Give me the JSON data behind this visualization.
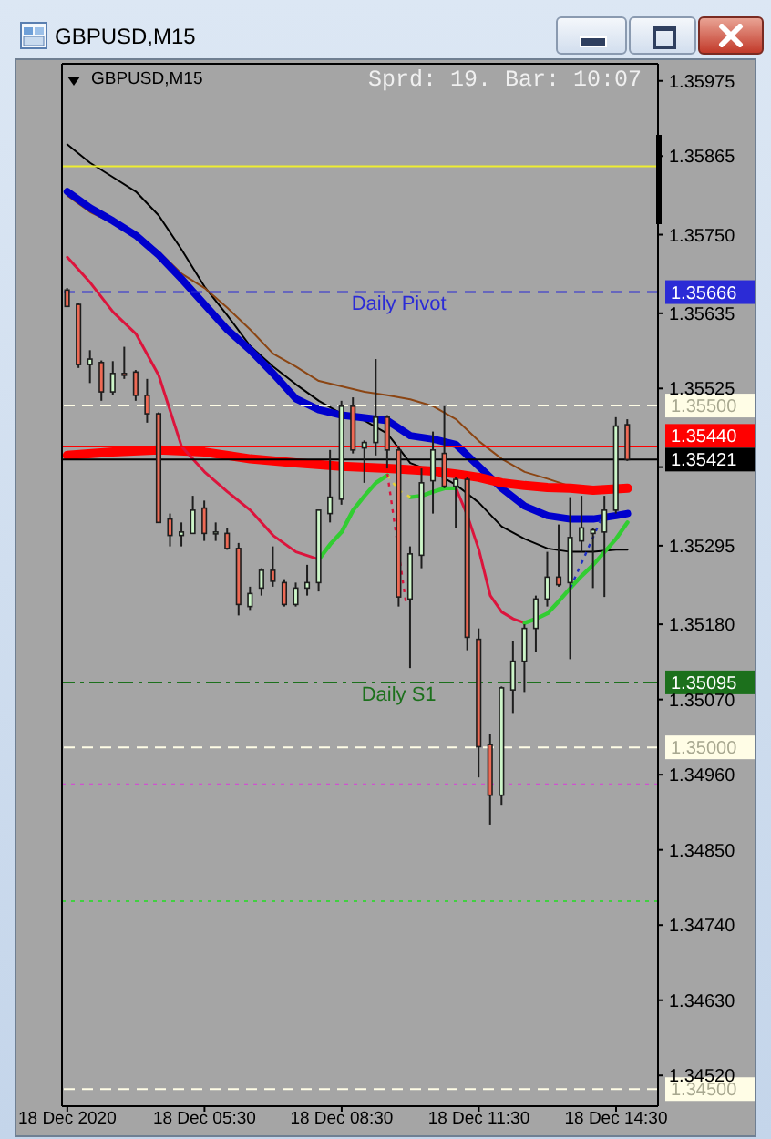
{
  "chart_data": {
    "type": "candlestick",
    "title": "GBPUSD,M15",
    "subtitle": "GBPUSD,M15",
    "annotations": [
      "Sprd: 19. Bar: 10:07",
      {
        "text": "Daily Pivot",
        "x": "2020-12-18T09:45",
        "y": 1.35666
      },
      {
        "text": "Daily S1",
        "x": "2020-12-18T09:45",
        "y": 1.35095
      }
    ],
    "x": [
      "2020-12-18T02:30",
      "2020-12-18T02:45",
      "2020-12-18T03:00",
      "2020-12-18T03:15",
      "2020-12-18T03:30",
      "2020-12-18T03:45",
      "2020-12-18T04:00",
      "2020-12-18T04:15",
      "2020-12-18T04:30",
      "2020-12-18T04:45",
      "2020-12-18T05:00",
      "2020-12-18T05:15",
      "2020-12-18T05:30",
      "2020-12-18T05:45",
      "2020-12-18T06:00",
      "2020-12-18T06:15",
      "2020-12-18T06:30",
      "2020-12-18T06:45",
      "2020-12-18T07:00",
      "2020-12-18T07:15",
      "2020-12-18T07:30",
      "2020-12-18T07:45",
      "2020-12-18T08:00",
      "2020-12-18T08:15",
      "2020-12-18T08:30",
      "2020-12-18T08:45",
      "2020-12-18T09:00",
      "2020-12-18T09:15",
      "2020-12-18T09:30",
      "2020-12-18T09:45",
      "2020-12-18T10:00",
      "2020-12-18T10:15",
      "2020-12-18T10:30",
      "2020-12-18T10:45",
      "2020-12-18T11:00",
      "2020-12-18T11:15",
      "2020-12-18T11:30",
      "2020-12-18T11:45",
      "2020-12-18T12:00",
      "2020-12-18T12:15",
      "2020-12-18T12:30",
      "2020-12-18T12:45",
      "2020-12-18T13:00",
      "2020-12-18T13:15",
      "2020-12-18T13:30",
      "2020-12-18T13:45",
      "2020-12-18T14:00",
      "2020-12-18T14:15",
      "2020-12-18T14:30",
      "2020-12-18T14:45"
    ],
    "ohlc": [
      [
        1.35669,
        1.35672,
        1.35645,
        1.35645
      ],
      [
        1.35648,
        1.3565,
        1.35555,
        1.3556
      ],
      [
        1.3556,
        1.35581,
        1.35533,
        1.35568
      ],
      [
        1.35563,
        1.35566,
        1.35507,
        1.3552
      ],
      [
        1.3552,
        1.35565,
        1.35515,
        1.35547
      ],
      [
        1.35547,
        1.35586,
        1.35539,
        1.35545
      ],
      [
        1.35549,
        1.35552,
        1.35507,
        1.35515
      ],
      [
        1.35515,
        1.35539,
        1.35475,
        1.35488
      ],
      [
        1.35488,
        1.3549,
        1.35329,
        1.35329
      ],
      [
        1.35334,
        1.35342,
        1.35294,
        1.3531
      ],
      [
        1.3531,
        1.35329,
        1.35294,
        1.35315
      ],
      [
        1.35313,
        1.35368,
        1.35313,
        1.35347
      ],
      [
        1.3535,
        1.35361,
        1.35302,
        1.35313
      ],
      [
        1.35313,
        1.35329,
        1.35302,
        1.35315
      ],
      [
        1.35313,
        1.35321,
        1.35289,
        1.35291
      ],
      [
        1.35291,
        1.35299,
        1.35193,
        1.35209
      ],
      [
        1.35206,
        1.35235,
        1.35201,
        1.35225
      ],
      [
        1.35233,
        1.35262,
        1.35222,
        1.35259
      ],
      [
        1.35259,
        1.35294,
        1.35235,
        1.35243
      ],
      [
        1.35241,
        1.35246,
        1.35206,
        1.35209
      ],
      [
        1.35209,
        1.35241,
        1.35206,
        1.35233
      ],
      [
        1.35233,
        1.35267,
        1.35222,
        1.35241
      ],
      [
        1.35241,
        1.35347,
        1.35228,
        1.35347
      ],
      [
        1.35342,
        1.35435,
        1.35329,
        1.35366
      ],
      [
        1.35363,
        1.35507,
        1.35355,
        1.35499
      ],
      [
        1.35499,
        1.35512,
        1.3543,
        1.35435
      ],
      [
        1.35438,
        1.35449,
        1.35387,
        1.35446
      ],
      [
        1.35446,
        1.35568,
        1.35427,
        1.35483
      ],
      [
        1.35483,
        1.35486,
        1.35408,
        1.35435
      ],
      [
        1.35435,
        1.3544,
        1.35206,
        1.3522
      ],
      [
        1.35217,
        1.35294,
        1.35116,
        1.35283
      ],
      [
        1.35281,
        1.35408,
        1.35262,
        1.35387
      ],
      [
        1.3539,
        1.35462,
        1.35342,
        1.35435
      ],
      [
        1.3543,
        1.35499,
        1.35379,
        1.35382
      ],
      [
        1.35382,
        1.35395,
        1.35321,
        1.35392
      ],
      [
        1.35392,
        1.35395,
        1.35142,
        1.35161
      ],
      [
        1.35158,
        1.35174,
        1.34956,
        1.35001
      ],
      [
        1.35004,
        1.3502,
        1.34887,
        1.3493
      ],
      [
        1.3493,
        1.35089,
        1.34916,
        1.35087
      ],
      [
        1.35084,
        1.35156,
        1.35049,
        1.35126
      ],
      [
        1.35126,
        1.3518,
        1.35081,
        1.35174
      ],
      [
        1.35174,
        1.35222,
        1.3514,
        1.35217
      ],
      [
        1.35217,
        1.35286,
        1.35206,
        1.35249
      ],
      [
        1.35249,
        1.35326,
        1.35235,
        1.35238
      ],
      [
        1.35241,
        1.35366,
        1.35129,
        1.35307
      ],
      [
        1.35302,
        1.35368,
        1.35286,
        1.35321
      ],
      [
        1.35313,
        1.35321,
        1.35233,
        1.35318
      ],
      [
        1.35315,
        1.35368,
        1.3522,
        1.35347
      ],
      [
        1.35347,
        1.35483,
        1.35342,
        1.3547
      ],
      [
        1.35472,
        1.3548,
        1.35419,
        1.35421
      ]
    ],
    "colors": [
      "#ee6a55",
      "#ee6a55",
      "#ccf5c8",
      "#ee6a55",
      "#ccf5c8",
      "#ee6a55",
      "#ee6a55",
      "#ee6a55",
      "#ee6a55",
      "#ee6a55",
      "#ccf5c8",
      "#ccf5c8",
      "#ee6a55",
      "#ccf5c8",
      "#ee6a55",
      "#ee6a55",
      "#ccf5c8",
      "#ccf5c8",
      "#ee6a55",
      "#ee6a55",
      "#ccf5c8",
      "#ccf5c8",
      "#ccf5c8",
      "#ccf5c8",
      "#ccf5c8",
      "#ee6a55",
      "#ccf5c8",
      "#ccf5c8",
      "#ee6a55",
      "#ee6a55",
      "#ccf5c8",
      "#ccf5c8",
      "#ccf5c8",
      "#ee6a55",
      "#ccf5c8",
      "#ee6a55",
      "#ee6a55",
      "#ee6a55",
      "#ccf5c8",
      "#ccf5c8",
      "#ccf5c8",
      "#ccf5c8",
      "#ccf5c8",
      "#ee6a55",
      "#ccf5c8",
      "#ccf5c8",
      "#ccf5c8",
      "#ccf5c8",
      "#ccf5c8",
      "#ee6a55"
    ],
    "series": [
      {
        "type": "line",
        "color": "#000000",
        "x": [
          "2020-12-18T02:30",
          "2020-12-18T03:00",
          "2020-12-18T03:30",
          "2020-12-18T04:00",
          "2020-12-18T04:30",
          "2020-12-18T05:00",
          "2020-12-18T05:30",
          "2020-12-18T06:00",
          "2020-12-18T06:30",
          "2020-12-18T07:00",
          "2020-12-18T07:30",
          "2020-12-18T08:00",
          "2020-12-18T08:30",
          "2020-12-18T09:00",
          "2020-12-18T09:30",
          "2020-12-18T10:00",
          "2020-12-18T10:30",
          "2020-12-18T11:00",
          "2020-12-18T11:30",
          "2020-12-18T12:00",
          "2020-12-18T12:30",
          "2020-12-18T13:00",
          "2020-12-18T13:30",
          "2020-12-18T14:00",
          "2020-12-18T14:30",
          "2020-12-18T14:45"
        ],
        "values": [
          1.35882,
          1.35855,
          1.35834,
          1.35813,
          1.35778,
          1.35728,
          1.35674,
          1.35632,
          1.35587,
          1.35557,
          1.35531,
          1.35507,
          1.35488,
          1.35478,
          1.35459,
          1.35416,
          1.35403,
          1.35384,
          1.35358,
          1.35323,
          1.35305,
          1.35291,
          1.35286,
          1.35286,
          1.35289,
          1.35289
        ]
      },
      {
        "type": "line",
        "color": "#8b4513",
        "x": [
          "2020-12-18T02:30",
          "2020-12-18T03:00",
          "2020-12-18T03:30",
          "2020-12-18T04:00",
          "2020-12-18T04:30",
          "2020-12-18T05:00",
          "2020-12-18T05:30",
          "2020-12-18T06:00",
          "2020-12-18T06:30",
          "2020-12-18T07:00",
          "2020-12-18T07:30",
          "2020-12-18T08:00",
          "2020-12-18T08:30",
          "2020-12-18T09:00",
          "2020-12-18T09:30",
          "2020-12-18T10:00",
          "2020-12-18T10:30",
          "2020-12-18T11:00",
          "2020-12-18T11:30",
          "2020-12-18T12:00",
          "2020-12-18T12:30",
          "2020-12-18T13:00",
          "2020-12-18T13:30",
          "2020-12-18T14:00",
          "2020-12-18T14:30",
          "2020-12-18T14:45"
        ],
        "values": [
          1.35807,
          1.35783,
          1.35767,
          1.35751,
          1.35725,
          1.35693,
          1.35672,
          1.35643,
          1.35611,
          1.35576,
          1.35557,
          1.35536,
          1.35528,
          1.3552,
          1.35515,
          1.35509,
          1.35499,
          1.3548,
          1.35448,
          1.35422,
          1.35403,
          1.35393,
          1.35382,
          1.35379,
          1.35379,
          1.35379
        ]
      },
      {
        "type": "line",
        "color": "#0000cd",
        "x": [
          "2020-12-18T02:30",
          "2020-12-18T03:00",
          "2020-12-18T03:30",
          "2020-12-18T04:00",
          "2020-12-18T04:30",
          "2020-12-18T05:00",
          "2020-12-18T05:30",
          "2020-12-18T06:00",
          "2020-12-18T06:30",
          "2020-12-18T07:00",
          "2020-12-18T07:30",
          "2020-12-18T08:00",
          "2020-12-18T08:30",
          "2020-12-18T09:00",
          "2020-12-18T09:30",
          "2020-12-18T10:00",
          "2020-12-18T10:30",
          "2020-12-18T11:00",
          "2020-12-18T11:30",
          "2020-12-18T12:00",
          "2020-12-18T12:30",
          "2020-12-18T13:00",
          "2020-12-18T13:30",
          "2020-12-18T14:00",
          "2020-12-18T14:30",
          "2020-12-18T14:45"
        ],
        "values": [
          1.35813,
          1.35789,
          1.3577,
          1.35749,
          1.3572,
          1.35685,
          1.35648,
          1.35611,
          1.35581,
          1.35547,
          1.3551,
          1.35494,
          1.35486,
          1.35482,
          1.35478,
          1.35456,
          1.35451,
          1.35443,
          1.35411,
          1.35379,
          1.35353,
          1.35339,
          1.35334,
          1.35334,
          1.35339,
          1.35342
        ]
      },
      {
        "type": "line",
        "color": "#ff0000",
        "x": [
          "2020-12-18T02:30",
          "2020-12-18T03:30",
          "2020-12-18T04:30",
          "2020-12-18T05:30",
          "2020-12-18T06:30",
          "2020-12-18T07:30",
          "2020-12-18T08:30",
          "2020-12-18T09:30",
          "2020-12-18T10:30",
          "2020-12-18T11:00",
          "2020-12-18T11:30",
          "2020-12-18T12:00",
          "2020-12-18T12:30",
          "2020-12-18T13:00",
          "2020-12-18T13:30",
          "2020-12-18T14:00",
          "2020-12-18T14:45"
        ],
        "values": [
          1.35427,
          1.35432,
          1.35435,
          1.35432,
          1.35422,
          1.35416,
          1.35411,
          1.35408,
          1.35404,
          1.354,
          1.35395,
          1.35387,
          1.35383,
          1.3538,
          1.35379,
          1.35376,
          1.35379
        ]
      },
      {
        "type": "line",
        "color": "#dc143c",
        "x": [
          "2020-12-18T02:30",
          "2020-12-18T03:00",
          "2020-12-18T03:30",
          "2020-12-18T04:00",
          "2020-12-18T04:30",
          "2020-12-18T05:00",
          "2020-12-18T05:30",
          "2020-12-18T06:00",
          "2020-12-18T06:30",
          "2020-12-18T07:00",
          "2020-12-18T07:30",
          "2020-12-18T08:00",
          "2020-12-18T08:30",
          "2020-12-18T11:00",
          "2020-12-18T11:15",
          "2020-12-18T11:30",
          "2020-12-18T11:45",
          "2020-12-18T12:00",
          "2020-12-18T12:15",
          "2020-12-18T12:30"
        ],
        "values": [
          1.35717,
          1.3568,
          1.35637,
          1.35605,
          1.35544,
          1.3544,
          1.35403,
          1.35374,
          1.35347,
          1.3531,
          1.35286,
          1.35275,
          null,
          1.35379,
          1.35339,
          1.35289,
          1.35222,
          1.35198,
          1.35188,
          1.35182
        ]
      },
      {
        "type": "line",
        "color": "#32cd32",
        "x": [
          "2020-12-18T08:00",
          "2020-12-18T08:15",
          "2020-12-18T08:30",
          "2020-12-18T08:45",
          "2020-12-18T09:00",
          "2020-12-18T09:15",
          "2020-12-18T09:30",
          "2020-12-18T09:45",
          "2020-12-18T10:00",
          "2020-12-18T10:15",
          "2020-12-18T10:30",
          "2020-12-18T10:45",
          "2020-12-18T11:00",
          "2020-12-18T11:15",
          "2020-12-18T12:30",
          "2020-12-18T12:45",
          "2020-12-18T13:00",
          "2020-12-18T13:15",
          "2020-12-18T13:30",
          "2020-12-18T13:45",
          "2020-12-18T14:00",
          "2020-12-18T14:15",
          "2020-12-18T14:30",
          "2020-12-18T14:45"
        ],
        "values": [
          1.35275,
          1.35297,
          1.35315,
          1.35347,
          1.35368,
          1.35387,
          1.35398,
          null,
          1.35366,
          1.35368,
          1.35374,
          1.35379,
          1.35379,
          null,
          1.35182,
          1.35188,
          1.35196,
          1.35214,
          1.35233,
          1.35251,
          1.35267,
          1.35286,
          1.35305,
          1.35329
        ]
      },
      {
        "type": "line",
        "color": "#e6d23c",
        "line_style": "dotted",
        "x": [
          "2020-12-18T09:30",
          "2020-12-18T09:45",
          "2020-12-18T10:00"
        ],
        "values": [
          1.35398,
          1.35376,
          1.35366
        ]
      },
      {
        "type": "line",
        "color": "#dc143c",
        "line_style": "dotted",
        "x": [
          "2020-12-18T09:30",
          "2020-12-18T09:54"
        ],
        "values": [
          1.354,
          1.35214
        ]
      },
      {
        "type": "line",
        "color": "#2030c0",
        "line_style": "dotted",
        "x": [
          "2020-12-18T13:30",
          "2020-12-18T14:15"
        ],
        "values": [
          1.35233,
          1.35345
        ]
      }
    ],
    "xlim": [
      "2020-12-18T02:23",
      "2020-12-18T15:25"
    ],
    "xticks": [
      {
        "value": "2020-12-18T02:30",
        "label": "18 Dec 2020"
      },
      {
        "value": "2020-12-18T05:30",
        "label": "18 Dec 05:30"
      },
      {
        "value": "2020-12-18T08:30",
        "label": "18 Dec 08:30"
      },
      {
        "value": "2020-12-18T11:30",
        "label": "18 Dec 11:30"
      },
      {
        "value": "2020-12-18T14:30",
        "label": "18 Dec 14:30"
      }
    ],
    "ylim": [
      1.34475,
      1.36
    ],
    "yticks": [
      1.35975,
      1.35865,
      {
        "value": 1.3575,
        "label": "1.35750"
      },
      1.35635,
      1.35525,
      {
        "value": 1.3541,
        "label": null
      },
      1.35295,
      {
        "value": 1.3518,
        "label": "1.35180"
      },
      {
        "value": 1.3507,
        "label": "1.35070"
      },
      {
        "value": 1.3496,
        "label": "1.34960"
      },
      {
        "value": 1.3485,
        "label": "1.34850"
      },
      {
        "value": 1.3474,
        "label": "1.34740"
      },
      {
        "value": 1.3463,
        "label": "1.34630"
      },
      {
        "value": 1.3452,
        "label": "1.34520"
      }
    ],
    "ref_lines": [
      {
        "axis": "y",
        "value": 1.3585,
        "color": "#eeee30",
        "line_style": "solid"
      },
      {
        "axis": "y",
        "value": 1.35666,
        "label": "1.35666",
        "color": "#2b2bd6",
        "line_style": "dashed"
      },
      {
        "axis": "y",
        "value": 1.355,
        "label": "1.35500",
        "color": "#fffde6",
        "line_style": "dashed"
      },
      {
        "axis": "y",
        "value": 1.3544,
        "label": "1.35440",
        "color": "#ff0000",
        "line_style": "solid"
      },
      {
        "axis": "y",
        "value": 1.35421,
        "label": "1.35421",
        "color": "#000000",
        "line_style": "solid"
      },
      {
        "axis": "y",
        "value": 1.35095,
        "label": "1.35095",
        "color": "#1c701c",
        "line_style": "dashdot"
      },
      {
        "axis": "y",
        "value": 1.35,
        "label": "1.35000",
        "color": "#fffde6",
        "line_style": "dashed"
      },
      {
        "axis": "y",
        "value": 1.34946,
        "color": "#d050d0",
        "line_style": "dotted"
      },
      {
        "axis": "y",
        "value": 1.34775,
        "color": "#40d040",
        "line_style": "dotted"
      },
      {
        "axis": "y",
        "value": 1.345,
        "label": "1.34500",
        "color": "#fffde6",
        "line_style": "dashed"
      }
    ]
  }
}
